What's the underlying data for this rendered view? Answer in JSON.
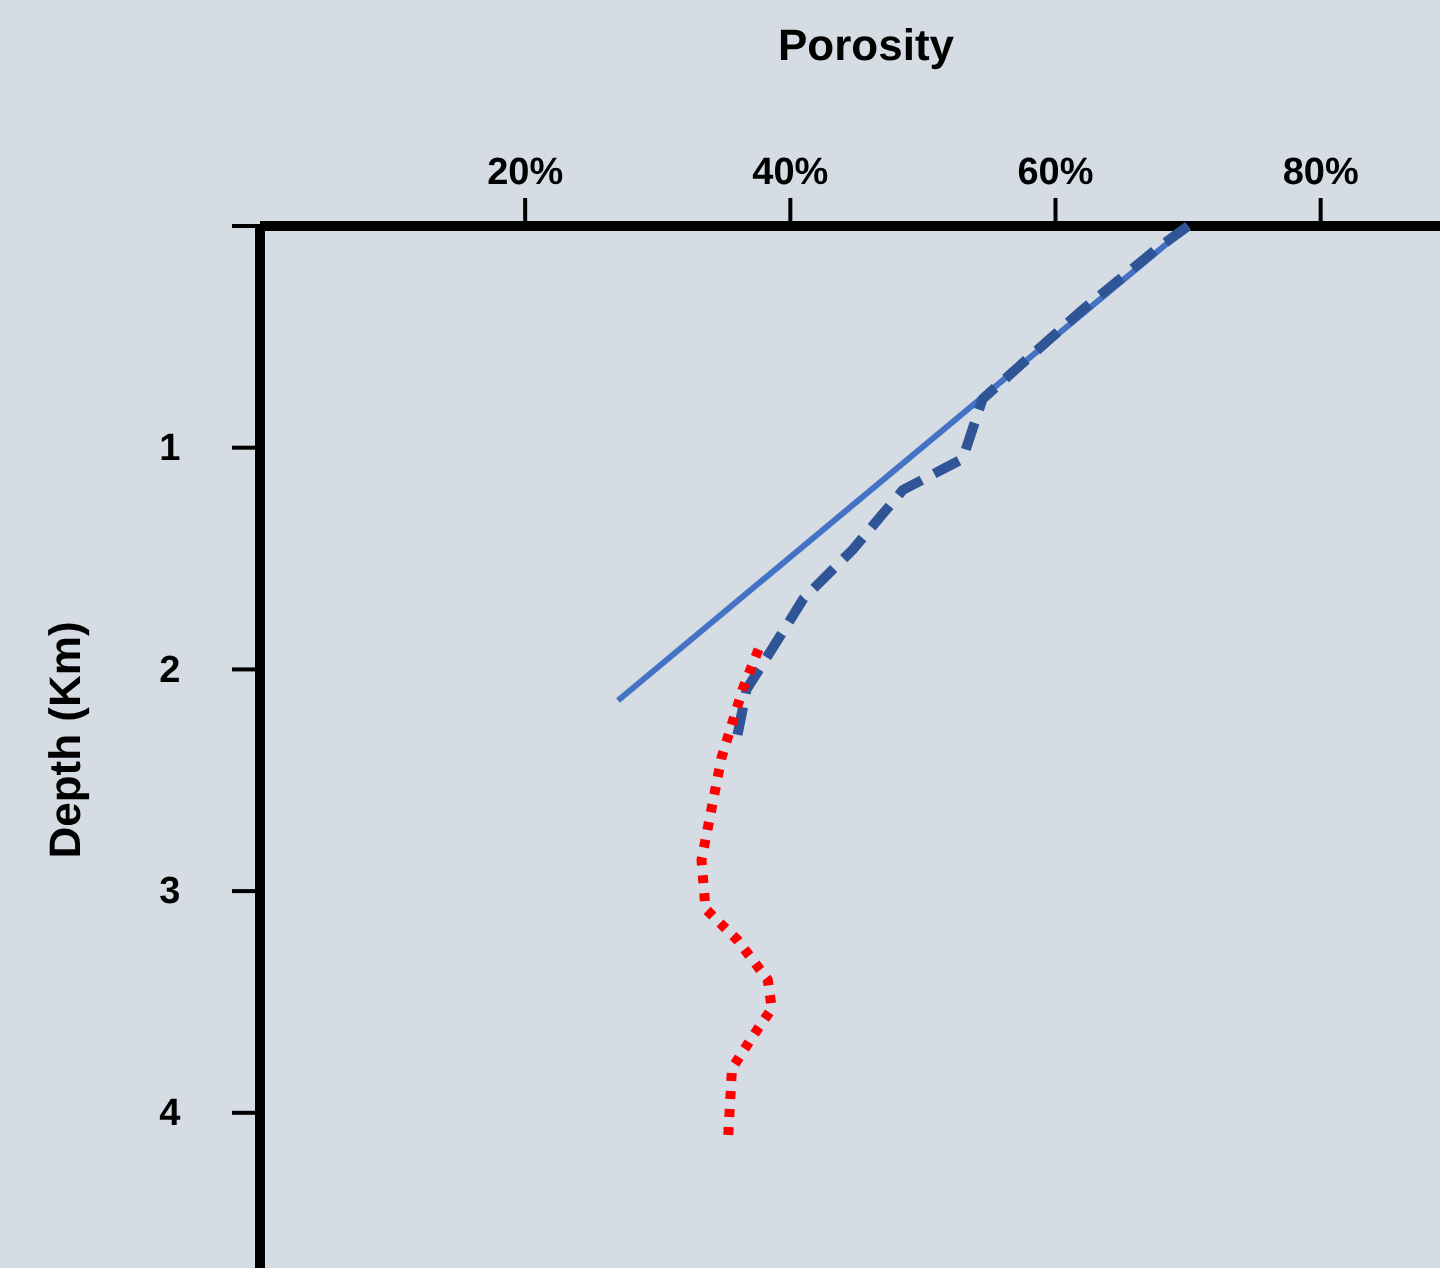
{
  "chart_data": {
    "type": "line",
    "xlabel": "Porosity",
    "ylabel": "Depth (Km)",
    "xlim": [
      0,
      89
    ],
    "xticks": [
      {
        "value": 20,
        "label": "20%"
      },
      {
        "value": 40,
        "label": "40%"
      },
      {
        "value": 60,
        "label": "60%"
      },
      {
        "value": 80,
        "label": "80%"
      }
    ],
    "ylim": [
      4.7,
      0
    ],
    "yticks": [
      {
        "value": 0,
        "label": null
      },
      1,
      2,
      3,
      4
    ],
    "grid": false,
    "marker": "none",
    "series": [
      {
        "color": "#4472c4",
        "line_style": "solid",
        "x": [
          70,
          27
        ],
        "values": [
          0,
          2.14
        ]
      },
      {
        "color": "#2f5597",
        "line_style": "dashed",
        "x": [
          70,
          67.5,
          62,
          54.5,
          53,
          48.5,
          44.7,
          41,
          38.6,
          36.7,
          36
        ],
        "values": [
          0,
          0.11,
          0.38,
          0.78,
          1.05,
          1.19,
          1.46,
          1.68,
          1.91,
          2.09,
          2.3
        ]
      },
      {
        "color": "#ff0000",
        "line_style": "dotted",
        "x": [
          37.6,
          36.4,
          34.8,
          33.3,
          33.6,
          36,
          38.3,
          38.6,
          37,
          35.6,
          35.3
        ],
        "values": [
          1.91,
          2.09,
          2.4,
          2.86,
          3.08,
          3.22,
          3.4,
          3.53,
          3.67,
          3.8,
          4.12
        ]
      }
    ]
  }
}
